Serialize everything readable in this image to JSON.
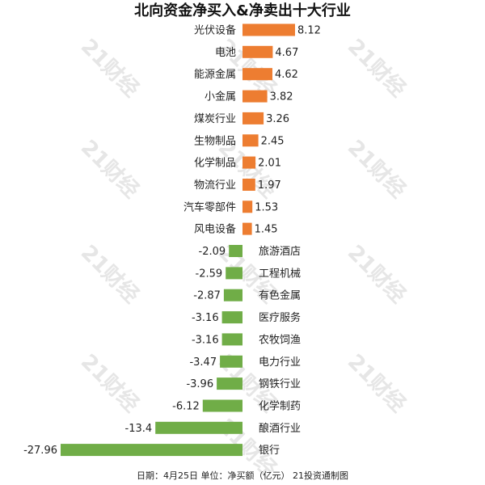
{
  "chart_data": {
    "type": "bar",
    "orientation": "horizontal",
    "title": "北向资金净买入&净卖出十大行业",
    "categories": [
      "光伏设备",
      "电池",
      "能源金属",
      "小金属",
      "煤炭行业",
      "生物制品",
      "化学制品",
      "物流行业",
      "汽车零部件",
      "风电设备",
      "旅游酒店",
      "工程机械",
      "有色金属",
      "医疗服务",
      "农牧饲渔",
      "电力行业",
      "钢铁行业",
      "化学制药",
      "酿酒行业",
      "银行"
    ],
    "values": [
      8.12,
      4.67,
      4.62,
      3.82,
      3.26,
      2.45,
      2.01,
      1.97,
      1.53,
      1.45,
      -2.09,
      -2.59,
      -2.87,
      -3.16,
      -3.16,
      -3.47,
      -3.96,
      -6.12,
      -13.4,
      -27.96
    ],
    "value_labels": [
      "8.12",
      "4.67",
      "4.62",
      "3.82",
      "3.26",
      "2.45",
      "2.01",
      "1.97",
      "1.53",
      "1.45",
      "-2.09",
      "-2.59",
      "-2.87",
      "-3.16",
      "-3.16",
      "-3.47",
      "-3.96",
      "-6.12",
      "-13.4",
      "-27.96"
    ],
    "xlim": [
      -27.96,
      8.12
    ],
    "grid": false,
    "colors": {
      "positive": "#ed7d31",
      "negative": "#70ad47"
    }
  },
  "footer": "日期：4月25日 单位：净买额（亿元） 21投资通制图",
  "watermark": "21财经"
}
